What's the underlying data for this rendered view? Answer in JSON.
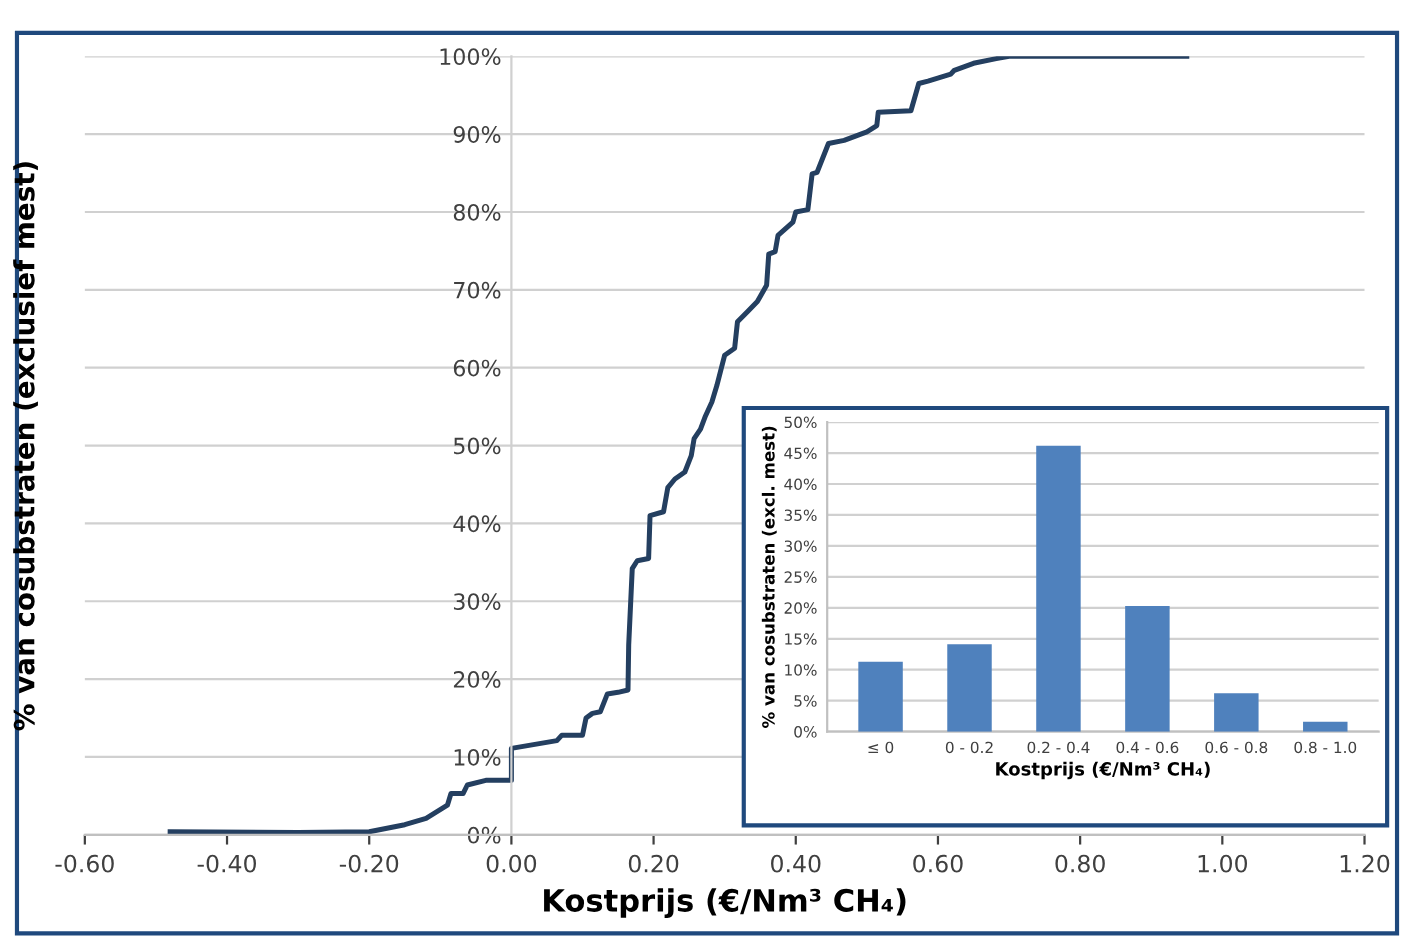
{
  "chart_data": [
    {
      "type": "line",
      "xlabel": "Kostprijs (€/Nm³ CH₄)",
      "ylabel": "% van cosubstraten (exclusief mest)",
      "x": [
        -0.48,
        -0.3,
        -0.2,
        -0.15,
        -0.12,
        -0.09,
        -0.085,
        -0.068,
        -0.062,
        -0.036,
        0.0,
        0.0,
        0.064,
        0.071,
        0.1,
        0.105,
        0.114,
        0.125,
        0.135,
        0.15,
        0.164,
        0.165,
        0.17,
        0.177,
        0.193,
        0.195,
        0.214,
        0.22,
        0.23,
        0.244,
        0.253,
        0.257,
        0.266,
        0.273,
        0.282,
        0.289,
        0.3,
        0.314,
        0.318,
        0.332,
        0.346,
        0.359,
        0.362,
        0.371,
        0.375,
        0.396,
        0.4,
        0.417,
        0.423,
        0.43,
        0.446,
        0.468,
        0.5,
        0.514,
        0.516,
        0.562,
        0.573,
        0.586,
        0.618,
        0.623,
        0.65,
        0.682,
        0.7,
        0.95
      ],
      "series": [
        {
          "color": "#243f60",
          "values": [
            0.4,
            0.3,
            0.4,
            1.3,
            2.1,
            3.8,
            5.3,
            5.3,
            6.4,
            7.0,
            7.0,
            11.1,
            12.1,
            12.8,
            12.8,
            15.0,
            15.6,
            15.8,
            18.1,
            18.3,
            18.6,
            24.4,
            34.2,
            35.2,
            35.5,
            41.0,
            41.5,
            44.6,
            45.7,
            46.6,
            48.7,
            50.9,
            52.1,
            53.8,
            55.6,
            57.7,
            61.6,
            62.5,
            65.9,
            67.2,
            68.5,
            70.6,
            74.6,
            74.9,
            77.0,
            78.7,
            80.0,
            80.3,
            84.9,
            85.1,
            88.8,
            89.2,
            90.3,
            91.1,
            92.8,
            93.0,
            96.5,
            96.8,
            97.7,
            98.2,
            99.1,
            99.7,
            100,
            100
          ]
        }
      ],
      "xlim": [
        -0.6,
        1.2
      ],
      "xticks": [
        {
          "value": -0.6,
          "label": "-0.60"
        },
        {
          "value": -0.4,
          "label": "-0.40"
        },
        {
          "value": -0.2,
          "label": "-0.20"
        },
        {
          "value": 0,
          "label": "0.00"
        },
        {
          "value": 0.2,
          "label": "0.20"
        },
        {
          "value": 0.4,
          "label": "0.40"
        },
        {
          "value": 0.6,
          "label": "0.60"
        },
        {
          "value": 0.8,
          "label": "0.80"
        },
        {
          "value": 1.0,
          "label": "1.00"
        },
        {
          "value": 1.2,
          "label": "1.20"
        }
      ],
      "ylim": [
        0,
        100
      ],
      "yticks": [
        {
          "value": 0,
          "label": "0%"
        },
        {
          "value": 10,
          "label": "10%"
        },
        {
          "value": 20,
          "label": "20%"
        },
        {
          "value": 30,
          "label": "30%"
        },
        {
          "value": 40,
          "label": "40%"
        },
        {
          "value": 50,
          "label": "50%"
        },
        {
          "value": 60,
          "label": "60%"
        },
        {
          "value": 70,
          "label": "70%"
        },
        {
          "value": 80,
          "label": "80%"
        },
        {
          "value": 90,
          "label": "90%"
        },
        {
          "value": 100,
          "label": "100%"
        }
      ],
      "grid": "y",
      "marker": "none",
      "line_style": "solid"
    },
    {
      "type": "bar",
      "xlabel": "Kostprijs (€/Nm³ CH₄)",
      "ylabel": "% van cosubstraten (excl. mest)",
      "categories": [
        "≤ 0",
        "0 - 0.2",
        "0.2 - 0.4",
        "0.4 - 0.6",
        "0.6 - 0.8",
        "0.8 - 1.0"
      ],
      "series": [
        {
          "color": "#4f81bd",
          "values": [
            11.3,
            14.1,
            46.2,
            20.3,
            6.2,
            1.6
          ]
        }
      ],
      "ylim": [
        0,
        50
      ],
      "yticks": [
        {
          "value": 0,
          "label": "0%"
        },
        {
          "value": 5,
          "label": "5%"
        },
        {
          "value": 10,
          "label": "10%"
        },
        {
          "value": 15,
          "label": "15%"
        },
        {
          "value": 20,
          "label": "20%"
        },
        {
          "value": 25,
          "label": "25%"
        },
        {
          "value": 30,
          "label": "30%"
        },
        {
          "value": 35,
          "label": "35%"
        },
        {
          "value": 40,
          "label": "40%"
        },
        {
          "value": 45,
          "label": "45%"
        },
        {
          "value": 50,
          "label": "50%"
        }
      ],
      "grid": "y"
    }
  ]
}
